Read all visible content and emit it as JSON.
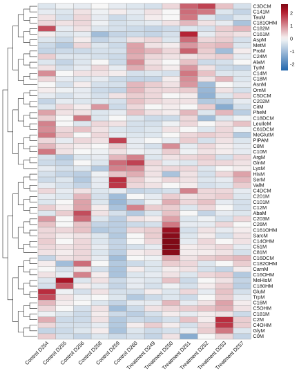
{
  "chart_data": {
    "type": "heatmap",
    "title": "",
    "columns": [
      "Control D254",
      "Control D255",
      "Control D256",
      "Control D258",
      "Control D259",
      "Control D260",
      "Treatment D249",
      "Treatment D250",
      "Treatment D251",
      "Treatment D252",
      "Treatment D253",
      "Treatment D257"
    ],
    "rows": [
      "C3DCM",
      "C141M",
      "TauM",
      "C181OHM",
      "C182M",
      "C161M",
      "AspM",
      "MetM",
      "ProM",
      "C24M",
      "AlaM",
      "TyrM",
      "C14M",
      "C18M",
      "AsnM",
      "OrnM",
      "C5DCM",
      "C202M",
      "CitM",
      "PheM",
      "C18DCM",
      "LeuIleM",
      "C61DCM",
      "MeGlutM",
      "PIPAM",
      "C8M",
      "C10M",
      "ArgM",
      "GlnM",
      "LysM",
      "HisM",
      "SerM",
      "ValM",
      "C4DCM",
      "C201M",
      "C101M",
      "C12M",
      "AbaM",
      "C203M",
      "C26M",
      "C161OHM",
      "SarcM",
      "C14OHM",
      "C51M",
      "C81M",
      "C16DCM",
      "C182OHM",
      "CarnM",
      "C16OHM",
      "MeHisM",
      "C180HM",
      "GluM",
      "TrpM",
      "C16M",
      "C5OHM",
      "C181M",
      "C2M",
      "C4OHM",
      "GlyM",
      "C0M"
    ],
    "values": [
      [
        -0.3,
        -0.1,
        -0.2,
        0.0,
        -0.2,
        -0.3,
        -0.4,
        0.3,
        1.4,
        1.7,
        0.5,
        -0.4
      ],
      [
        -0.2,
        -0.3,
        0.2,
        -0.1,
        0.1,
        -0.2,
        0.2,
        0.0,
        1.3,
        1.2,
        -0.3,
        -0.6
      ],
      [
        0.2,
        -0.4,
        0.3,
        -0.2,
        -0.5,
        -0.3,
        0.1,
        0.0,
        1.2,
        -0.3,
        -0.6,
        -0.3
      ],
      [
        0.3,
        0.2,
        0.3,
        -0.1,
        -0.4,
        -0.3,
        -0.2,
        0.2,
        0.6,
        0.2,
        -0.2,
        -0.9
      ],
      [
        1.6,
        -0.2,
        0.2,
        -0.3,
        -0.4,
        -0.5,
        -0.6,
        -0.5,
        -0.3,
        -0.4,
        0.4,
        0.6
      ],
      [
        0.1,
        -0.3,
        -0.2,
        -1.0,
        -0.6,
        -0.5,
        -0.6,
        -0.4,
        2.0,
        -0.2,
        0.3,
        0.2
      ],
      [
        -0.3,
        -0.5,
        0.1,
        -0.6,
        -0.4,
        0.2,
        0.3,
        -0.3,
        1.3,
        0.3,
        0.4,
        -0.4
      ],
      [
        -0.5,
        -0.8,
        0.3,
        -0.3,
        -0.5,
        0.8,
        0.2,
        0.1,
        0.9,
        0.5,
        0.6,
        -0.3
      ],
      [
        -0.6,
        -0.5,
        -0.5,
        -0.4,
        -0.4,
        0.8,
        0.6,
        0.3,
        1.4,
        0.4,
        -1.0,
        0.1
      ],
      [
        0.4,
        -0.3,
        -0.3,
        -0.4,
        -0.5,
        0.7,
        0.3,
        0.2,
        0.2,
        0.3,
        0.4,
        -0.2
      ],
      [
        -0.3,
        -0.6,
        -0.3,
        0.0,
        -0.5,
        1.0,
        0.2,
        0.0,
        0.5,
        -0.5,
        -0.4,
        0.0
      ],
      [
        0.2,
        -0.4,
        -0.2,
        0.3,
        -0.2,
        0.7,
        0.3,
        0.1,
        0.9,
        0.2,
        -0.5,
        -0.6
      ],
      [
        1.0,
        0.0,
        0.2,
        0.2,
        0.1,
        -0.4,
        -0.3,
        -0.4,
        1.2,
        0.5,
        -0.3,
        -0.3
      ],
      [
        0.3,
        -0.2,
        -0.3,
        -0.2,
        -0.5,
        -0.6,
        -0.6,
        0.1,
        1.0,
        0.2,
        0.6,
        -0.3
      ],
      [
        0.0,
        -0.4,
        0.1,
        -0.4,
        -0.4,
        0.6,
        0.4,
        0.2,
        0.9,
        -1.0,
        0.0,
        -0.2
      ],
      [
        0.1,
        -0.1,
        -0.2,
        -0.5,
        -0.6,
        0.6,
        0.3,
        0.3,
        0.4,
        -1.1,
        0.2,
        -0.4
      ],
      [
        -0.2,
        -0.4,
        -0.2,
        -0.4,
        0.2,
        0.4,
        0.3,
        0.0,
        0.1,
        -1.2,
        -0.3,
        0.3
      ],
      [
        -0.6,
        -0.2,
        -0.3,
        -0.3,
        -0.4,
        0.5,
        0.3,
        0.2,
        0.2,
        -0.8,
        -0.7,
        -0.2
      ],
      [
        -0.3,
        0.3,
        0.1,
        0.9,
        -0.5,
        0.3,
        0.0,
        0.1,
        0.0,
        0.4,
        -1.3,
        -0.4
      ],
      [
        0.8,
        0.2,
        0.2,
        -0.3,
        -0.2,
        0.5,
        0.2,
        0.1,
        0.6,
        -0.3,
        0.6,
        -0.7
      ],
      [
        0.4,
        0.0,
        1.2,
        -0.3,
        0.0,
        -0.3,
        -0.5,
        -0.5,
        0.3,
        -1.0,
        -0.3,
        -0.1
      ],
      [
        1.1,
        0.0,
        -0.3,
        0.3,
        0.2,
        -0.4,
        -0.4,
        -0.1,
        0.3,
        0.0,
        0.2,
        0.5
      ],
      [
        1.0,
        0.3,
        0.5,
        0.2,
        -0.3,
        -0.4,
        -0.3,
        0.2,
        0.0,
        -0.3,
        0.3,
        -0.1
      ],
      [
        1.2,
        0.4,
        0.0,
        0.3,
        -0.2,
        -0.3,
        -0.3,
        0.0,
        0.3,
        0.4,
        0.3,
        -0.8
      ],
      [
        0.3,
        -0.2,
        0.3,
        0.2,
        1.7,
        -0.2,
        0.0,
        -0.2,
        0.4,
        -0.4,
        0.2,
        -0.3
      ],
      [
        0.6,
        0.2,
        0.1,
        0.0,
        0.4,
        -0.2,
        -0.4,
        1.0,
        -0.2,
        0.3,
        0.1,
        -0.2
      ],
      [
        1.2,
        0.2,
        0.0,
        -0.1,
        0.2,
        -0.1,
        -0.2,
        0.4,
        -0.1,
        0.2,
        0.1,
        -0.2
      ],
      [
        -0.4,
        -0.8,
        -0.3,
        -0.2,
        0.6,
        1.1,
        -0.3,
        0.2,
        0.3,
        0.4,
        -0.4,
        0.3
      ],
      [
        -0.5,
        -0.6,
        0.0,
        -0.3,
        1.3,
        1.7,
        0.3,
        -0.2,
        -0.3,
        0.3,
        0.3,
        0.2
      ],
      [
        -0.2,
        -0.4,
        -0.3,
        -0.8,
        1.1,
        1.0,
        0.2,
        0.3,
        0.3,
        -0.3,
        0.0,
        0.1
      ],
      [
        -0.4,
        -0.6,
        -0.7,
        -0.1,
        0.5,
        0.7,
        0.2,
        -0.9,
        0.2,
        -0.4,
        0.3,
        0.8
      ],
      [
        -0.5,
        -0.3,
        -0.8,
        -0.2,
        1.9,
        0.4,
        0.1,
        0.3,
        0.2,
        -0.3,
        -0.2,
        0.6
      ],
      [
        -0.2,
        -0.4,
        -0.6,
        -0.2,
        1.8,
        0.3,
        0.2,
        0.0,
        0.1,
        -0.4,
        -0.3,
        0.4
      ],
      [
        0.3,
        -0.2,
        0.2,
        -0.3,
        -0.2,
        -0.6,
        -0.5,
        -0.4,
        1.1,
        0.3,
        0.3,
        -0.2
      ],
      [
        -0.2,
        -0.3,
        0.6,
        -0.4,
        -1.0,
        0.0,
        -0.2,
        0.4,
        0.2,
        0.3,
        0.4,
        -0.3
      ],
      [
        -0.3,
        0.0,
        0.8,
        -0.3,
        -1.1,
        -0.6,
        -0.1,
        0.7,
        0.3,
        0.5,
        -0.2,
        -0.4
      ],
      [
        0.4,
        0.1,
        0.8,
        0.1,
        -0.9,
        1.1,
        0.4,
        0.4,
        -0.3,
        0.3,
        0.0,
        -0.4
      ],
      [
        -0.3,
        0.4,
        1.6,
        0.2,
        -0.4,
        -0.8,
        -0.3,
        0.5,
        0.0,
        -0.6,
        -0.2,
        -0.3
      ],
      [
        0.9,
        0.0,
        1.3,
        -0.3,
        -0.7,
        0.2,
        0.1,
        0.8,
        -0.3,
        -0.1,
        -0.4,
        0.3
      ],
      [
        0.5,
        0.0,
        0.5,
        -0.6,
        -0.7,
        -0.5,
        -0.4,
        1.2,
        -0.2,
        -0.2,
        0.3,
        0.0
      ],
      [
        0.3,
        0.3,
        0.5,
        -0.8,
        -0.7,
        0.3,
        0.4,
        2.4,
        -0.4,
        0.2,
        -0.2,
        0.1
      ],
      [
        0.3,
        0.1,
        0.2,
        -0.3,
        -0.8,
        0.0,
        0.4,
        2.6,
        -0.3,
        0.1,
        -0.4,
        0.2
      ],
      [
        0.4,
        0.0,
        0.3,
        -0.3,
        -0.6,
        0.0,
        0.3,
        2.7,
        -0.2,
        0.3,
        0.0,
        0.2
      ],
      [
        0.3,
        0.2,
        0.3,
        -0.2,
        -0.6,
        -0.4,
        -0.2,
        2.7,
        0.1,
        0.2,
        0.3,
        -0.2
      ],
      [
        0.2,
        0.1,
        0.3,
        -0.3,
        -0.7,
        0.1,
        0.2,
        2.6,
        0.1,
        0.1,
        0.2,
        -0.4
      ],
      [
        -0.6,
        0.2,
        0.3,
        -0.2,
        -1.0,
        0.0,
        -0.1,
        0.7,
        0.2,
        0.4,
        0.5,
        0.6
      ],
      [
        0.1,
        -1.0,
        1.3,
        0.0,
        -0.8,
        -0.5,
        -0.3,
        0.4,
        0.3,
        -0.3,
        0.0,
        0.4
      ],
      [
        0.0,
        -0.4,
        0.2,
        -0.4,
        -0.9,
        0.1,
        -0.3,
        0.1,
        0.2,
        -0.4,
        -0.6,
        0.1
      ],
      [
        0.2,
        -0.2,
        1.1,
        0.1,
        -0.9,
        -0.3,
        -0.2,
        0.2,
        -0.3,
        0.3,
        0.4,
        -0.8
      ],
      [
        -0.3,
        2.2,
        -0.3,
        0.2,
        -0.5,
        -0.2,
        -0.3,
        0.5,
        -0.5,
        0.0,
        0.2,
        -0.6
      ],
      [
        -0.4,
        1.5,
        0.1,
        -0.2,
        -0.6,
        -0.2,
        -0.4,
        -0.1,
        -0.4,
        0.1,
        0.4,
        -0.7
      ],
      [
        1.9,
        -0.1,
        -0.4,
        0.2,
        -0.4,
        -0.4,
        0.1,
        -0.3,
        0.3,
        -0.2,
        0.5,
        -0.4
      ],
      [
        1.6,
        0.2,
        -0.1,
        0.0,
        -0.3,
        -0.8,
        -0.5,
        -0.3,
        -0.5,
        0.0,
        0.4,
        -0.2
      ],
      [
        0.6,
        0.1,
        0.0,
        -0.3,
        -0.6,
        -0.2,
        -0.2,
        0.6,
        -0.2,
        0.2,
        0.8,
        0.1
      ],
      [
        0.3,
        0.0,
        -0.4,
        0.2,
        -1.0,
        -0.5,
        0.2,
        0.3,
        0.4,
        0.5,
        0.7,
        0.2
      ],
      [
        -0.1,
        -0.3,
        -0.5,
        0.1,
        -0.5,
        -0.7,
        -0.4,
        0.1,
        -0.2,
        0.1,
        0.2,
        -0.5
      ],
      [
        0.7,
        -0.5,
        -0.5,
        0.2,
        -0.8,
        -0.5,
        -0.6,
        -0.4,
        0.5,
        0.1,
        1.9,
        0.4
      ],
      [
        0.3,
        -0.4,
        -0.4,
        -0.2,
        -0.8,
        0.1,
        0.4,
        0.1,
        -0.4,
        0.3,
        1.8,
        0.4
      ],
      [
        -0.6,
        -0.5,
        -0.3,
        0.1,
        -0.9,
        -0.3,
        -0.5,
        -0.4,
        -0.2,
        0.4,
        1.2,
        -0.3
      ],
      [
        0.4,
        -0.4,
        -0.6,
        -0.3,
        -0.5,
        -0.4,
        -0.6,
        0.2,
        -1.3,
        0.0,
        0.3,
        -0.6
      ]
    ],
    "scale": {
      "min": -2.5,
      "max": 2.7,
      "ticks": [
        2,
        1,
        0,
        -1,
        -2
      ]
    },
    "colors": {
      "low": "#2166ac",
      "mid": "#f7f7f7",
      "high": "#b2182b",
      "highest": "#7f0a16",
      "grid": "#a9a9a9"
    },
    "dendrogram": "left"
  }
}
